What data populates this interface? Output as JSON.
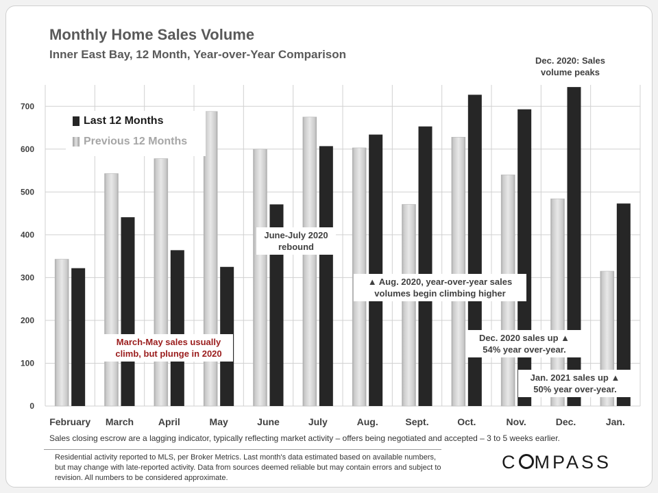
{
  "title": "Monthly Home Sales Volume",
  "subtitle": "Inner East Bay, 12 Month, Year-over-Year  Comparison",
  "legend": {
    "last": "Last 12 Months",
    "previous": "Previous 12 Months"
  },
  "annotations": {
    "peak": "Dec. 2020: Sales volume peaks",
    "rebound": "June-July 2020 rebound",
    "aug": "▲ Aug. 2020, year-over-year sales volumes begin climbing higher",
    "dec": "Dec. 2020 sales up ▲ 54% year over-year.",
    "jan": "Jan. 2021 sales up ▲ 50% year over-year.",
    "plunge": "March-May sales usually climb, but plunge in 2020"
  },
  "footnote": "Sales closing escrow are a lagging indicator, typically reflecting market activity – offers being negotiated and accepted – 3 to 5 weeks earlier.",
  "disclaimer": "Residential activity reported to MLS, per Broker Metrics. Last month's data estimated based on available numbers, but may change with late-reported activity. Data from sources deemed reliable but may contain errors and subject to revision. All numbers to be considered approximate.",
  "logo": {
    "left": "C",
    "right": "MPASS"
  },
  "colors": {
    "last": "#262626",
    "previous": "#d9d9d9",
    "grid": "#d0d0d0",
    "axis_text": "#404040",
    "annotation_red": "#9a1c1c"
  },
  "chart_data": {
    "type": "bar",
    "categories": [
      "February",
      "March",
      "April",
      "May",
      "June",
      "July",
      "Aug.",
      "Sept.",
      "Oct.",
      "Nov.",
      "Dec.",
      "Jan."
    ],
    "series": [
      {
        "name": "Previous 12 Months",
        "values": [
          343,
          543,
          578,
          688,
          600,
          675,
          603,
          471,
          628,
          540,
          484,
          315
        ]
      },
      {
        "name": "Last 12 Months",
        "values": [
          322,
          441,
          364,
          325,
          471,
          607,
          634,
          653,
          727,
          693,
          745,
          473
        ]
      }
    ],
    "title": "Monthly Home Sales Volume",
    "subtitle": "Inner East Bay, 12 Month, Year-over-Year  Comparison",
    "xlabel": "",
    "ylabel": "",
    "ylim": [
      0,
      750
    ],
    "yticks": [
      0,
      100,
      200,
      300,
      400,
      500,
      600,
      700
    ],
    "grid": true,
    "legend_position": "top-left"
  }
}
